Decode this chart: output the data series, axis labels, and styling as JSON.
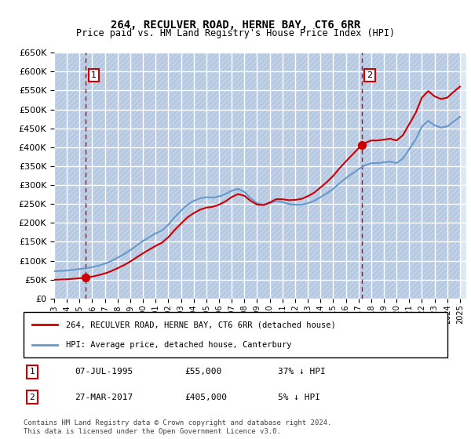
{
  "title": "264, RECULVER ROAD, HERNE BAY, CT6 6RR",
  "subtitle": "Price paid vs. HM Land Registry's House Price Index (HPI)",
  "ylabel_ticks": [
    "£0",
    "£50K",
    "£100K",
    "£150K",
    "£200K",
    "£250K",
    "£300K",
    "£350K",
    "£400K",
    "£450K",
    "£500K",
    "£550K",
    "£600K",
    "£650K"
  ],
  "ylim": [
    0,
    650000
  ],
  "ytick_vals": [
    0,
    50000,
    100000,
    150000,
    200000,
    250000,
    300000,
    350000,
    400000,
    450000,
    500000,
    550000,
    600000,
    650000
  ],
  "bg_color": "#dce9f5",
  "hatch_color": "#c0d0e8",
  "grid_color": "#ffffff",
  "transaction1_date": "1995-07-07",
  "transaction1_price": 55000,
  "transaction1_label": "1",
  "transaction2_date": "2017-03-27",
  "transaction2_price": 405000,
  "transaction2_label": "2",
  "line_red_color": "#cc0000",
  "line_blue_color": "#6699cc",
  "legend_line1": "264, RECULVER ROAD, HERNE BAY, CT6 6RR (detached house)",
  "legend_line2": "HPI: Average price, detached house, Canterbury",
  "footer1": "Contains HM Land Registry data © Crown copyright and database right 2024.",
  "footer2": "This data is licensed under the Open Government Licence v3.0.",
  "table_row1_num": "1",
  "table_row1_date": "07-JUL-1995",
  "table_row1_price": "£55,000",
  "table_row1_hpi": "37% ↓ HPI",
  "table_row2_num": "2",
  "table_row2_date": "27-MAR-2017",
  "table_row2_price": "£405,000",
  "table_row2_hpi": "5% ↓ HPI"
}
